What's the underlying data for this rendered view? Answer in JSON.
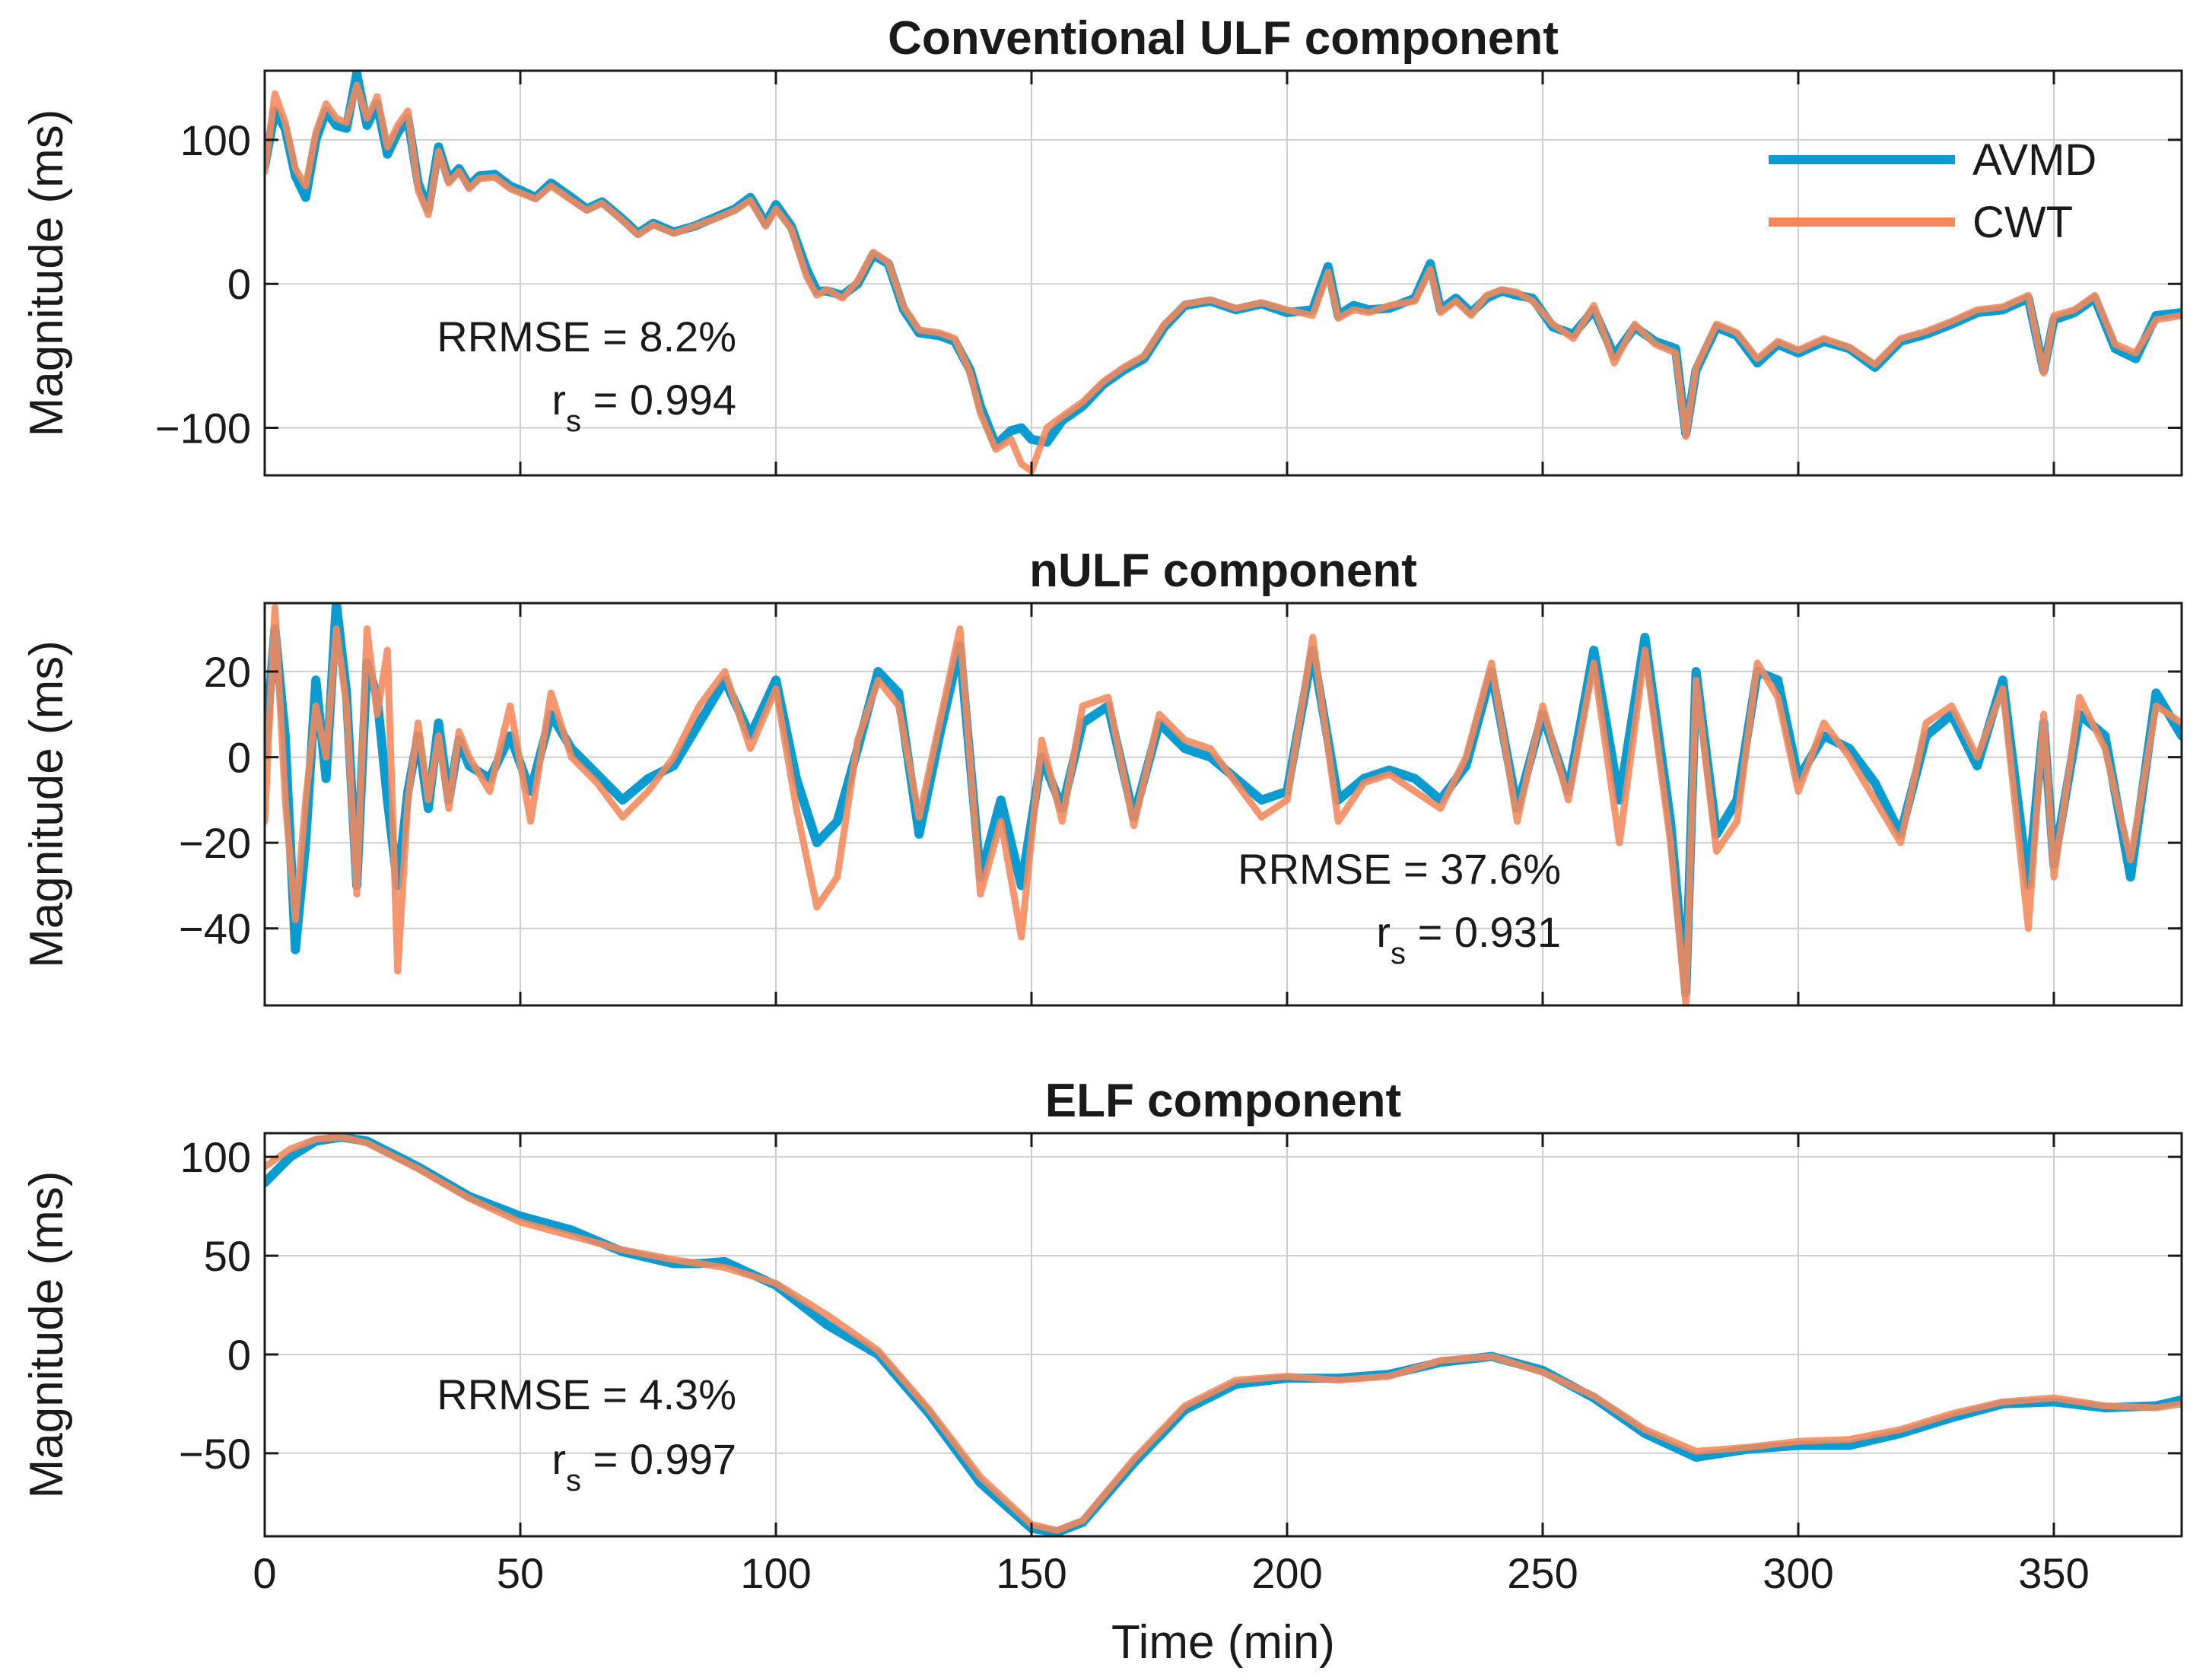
{
  "colors": {
    "avmd": "#0A9BD1",
    "cwt": "#F5875A",
    "cwt_overlap": "#D9714F"
  },
  "xlabel": "Time (min)",
  "legend": {
    "placement": "top-right",
    "entries": [
      "AVMD",
      "CWT"
    ]
  },
  "chart_data": [
    {
      "type": "line",
      "title": "Conventional ULF component",
      "xlabel": "",
      "ylabel": "Magnitude (ms)",
      "xlim": [
        0,
        375
      ],
      "ylim": [
        -133,
        148
      ],
      "xticks": [
        0,
        50,
        100,
        150,
        200,
        250,
        300,
        350
      ],
      "yticks": [
        -100,
        0,
        100
      ],
      "ytick_labels": [
        "−100",
        "0",
        "100"
      ],
      "stats": {
        "rrmse_label": "RRMSE",
        "rrmse_value": "8.2%",
        "rs_label": "r",
        "rs_sub": "s",
        "rs_value": "0.994",
        "eq": "="
      },
      "series": [
        {
          "name": "AVMD",
          "x": [
            0,
            2,
            4,
            6,
            8,
            10,
            12,
            14,
            16,
            18,
            20,
            22,
            24,
            26,
            28,
            30,
            32,
            34,
            36,
            38,
            40,
            42,
            45,
            48,
            50,
            53,
            56,
            60,
            63,
            66,
            70,
            73,
            76,
            80,
            84,
            88,
            92,
            95,
            98,
            100,
            103,
            106,
            108,
            110,
            113,
            116,
            119,
            122,
            125,
            128,
            132,
            135,
            138,
            140,
            143,
            146,
            148,
            150,
            153,
            156,
            160,
            164,
            168,
            172,
            176,
            180,
            185,
            190,
            195,
            200,
            205,
            208,
            210,
            213,
            216,
            220,
            225,
            228,
            230,
            233,
            236,
            239,
            242,
            245,
            248,
            252,
            256,
            260,
            264,
            268,
            272,
            276,
            278,
            280,
            284,
            288,
            292,
            296,
            300,
            305,
            310,
            315,
            320,
            325,
            330,
            335,
            340,
            345,
            348,
            350,
            354,
            358,
            362,
            366,
            370,
            375
          ],
          "y": [
            82,
            120,
            108,
            75,
            60,
            100,
            120,
            110,
            108,
            146,
            110,
            125,
            90,
            105,
            115,
            70,
            52,
            95,
            72,
            80,
            68,
            75,
            76,
            68,
            65,
            60,
            70,
            60,
            52,
            57,
            45,
            35,
            42,
            36,
            40,
            46,
            52,
            60,
            42,
            55,
            40,
            10,
            -5,
            -5,
            -8,
            0,
            20,
            14,
            -18,
            -34,
            -36,
            -40,
            -60,
            -85,
            -112,
            -102,
            -100,
            -108,
            -110,
            -95,
            -85,
            -70,
            -60,
            -52,
            -30,
            -15,
            -12,
            -18,
            -14,
            -20,
            -18,
            12,
            -22,
            -15,
            -18,
            -17,
            -10,
            14,
            -18,
            -10,
            -20,
            -10,
            -5,
            -8,
            -10,
            -30,
            -35,
            -18,
            -50,
            -30,
            -40,
            -45,
            -104,
            -60,
            -30,
            -36,
            -55,
            -42,
            -48,
            -40,
            -45,
            -58,
            -40,
            -35,
            -28,
            -20,
            -18,
            -10,
            -60,
            -25,
            -20,
            -10,
            -45,
            -52,
            -22,
            -20
          ]
        },
        {
          "name": "CWT",
          "x": [
            0,
            2,
            4,
            6,
            8,
            10,
            12,
            14,
            16,
            18,
            20,
            22,
            24,
            26,
            28,
            30,
            32,
            34,
            36,
            38,
            40,
            42,
            45,
            48,
            50,
            53,
            56,
            60,
            63,
            66,
            70,
            73,
            76,
            80,
            84,
            88,
            92,
            95,
            98,
            100,
            103,
            106,
            108,
            110,
            113,
            116,
            119,
            122,
            125,
            128,
            132,
            135,
            138,
            140,
            143,
            146,
            148,
            150,
            153,
            156,
            160,
            164,
            168,
            172,
            176,
            180,
            185,
            190,
            195,
            200,
            205,
            208,
            210,
            213,
            216,
            220,
            225,
            228,
            230,
            233,
            236,
            239,
            242,
            245,
            248,
            252,
            256,
            260,
            264,
            268,
            272,
            276,
            278,
            280,
            284,
            288,
            292,
            296,
            300,
            305,
            310,
            315,
            320,
            325,
            330,
            335,
            340,
            345,
            348,
            350,
            354,
            358,
            362,
            366,
            370,
            375
          ],
          "y": [
            78,
            132,
            112,
            80,
            68,
            105,
            125,
            115,
            112,
            138,
            115,
            130,
            95,
            110,
            120,
            65,
            48,
            92,
            70,
            78,
            66,
            73,
            74,
            66,
            63,
            59,
            68,
            58,
            51,
            56,
            44,
            34,
            41,
            35,
            40,
            45,
            51,
            58,
            40,
            52,
            38,
            5,
            -8,
            -4,
            -10,
            2,
            22,
            15,
            -16,
            -32,
            -34,
            -38,
            -62,
            -90,
            -115,
            -108,
            -125,
            -130,
            -100,
            -92,
            -82,
            -68,
            -58,
            -50,
            -28,
            -14,
            -11,
            -17,
            -13,
            -18,
            -22,
            8,
            -24,
            -18,
            -20,
            -15,
            -12,
            10,
            -20,
            -12,
            -22,
            -8,
            -4,
            -6,
            -12,
            -28,
            -38,
            -15,
            -55,
            -28,
            -42,
            -48,
            -106,
            -58,
            -28,
            -34,
            -52,
            -40,
            -46,
            -38,
            -44,
            -56,
            -38,
            -33,
            -26,
            -18,
            -16,
            -8,
            -62,
            -22,
            -18,
            -8,
            -42,
            -48,
            -25,
            -22
          ]
        }
      ]
    },
    {
      "type": "line",
      "title": "nULF component",
      "xlabel": "",
      "ylabel": "Magnitude (ms)",
      "xlim": [
        0,
        375
      ],
      "ylim": [
        -58,
        36
      ],
      "xticks": [
        0,
        50,
        100,
        150,
        200,
        250,
        300,
        350
      ],
      "yticks": [
        -40,
        -20,
        0,
        20
      ],
      "ytick_labels": [
        "−40",
        "−20",
        "0",
        "20"
      ],
      "stats": {
        "rrmse_label": "RRMSE",
        "rrmse_value": "37.6%",
        "rs_label": "r",
        "rs_sub": "s",
        "rs_value": "0.931",
        "eq": "="
      },
      "series": [
        {
          "name": "AVMD",
          "x": [
            0,
            2,
            4,
            6,
            8,
            10,
            12,
            14,
            16,
            18,
            20,
            22,
            24,
            26,
            28,
            30,
            32,
            34,
            36,
            38,
            40,
            44,
            48,
            52,
            56,
            60,
            65,
            70,
            75,
            80,
            85,
            90,
            95,
            100,
            104,
            108,
            112,
            116,
            120,
            124,
            128,
            132,
            136,
            140,
            144,
            148,
            152,
            156,
            160,
            165,
            170,
            175,
            180,
            185,
            190,
            195,
            200,
            205,
            210,
            215,
            220,
            225,
            230,
            235,
            240,
            245,
            250,
            255,
            260,
            265,
            270,
            275,
            278,
            280,
            284,
            288,
            292,
            296,
            300,
            305,
            310,
            315,
            320,
            325,
            330,
            335,
            340,
            345,
            348,
            350,
            355,
            360,
            365,
            370,
            375
          ],
          "y": [
            0,
            30,
            5,
            -45,
            -20,
            18,
            -5,
            36,
            15,
            -30,
            22,
            14,
            -10,
            -30,
            -8,
            5,
            -12,
            8,
            -10,
            4,
            -2,
            -5,
            5,
            -8,
            10,
            2,
            -4,
            -10,
            -5,
            -2,
            8,
            18,
            5,
            18,
            -5,
            -20,
            -15,
            2,
            20,
            15,
            -18,
            5,
            26,
            -28,
            -10,
            -30,
            0,
            -12,
            8,
            12,
            -14,
            8,
            2,
            0,
            -5,
            -10,
            -8,
            25,
            -10,
            -5,
            -3,
            -5,
            -10,
            -2,
            20,
            -12,
            10,
            -8,
            25,
            -10,
            28,
            -15,
            -55,
            20,
            -18,
            -10,
            20,
            18,
            -5,
            5,
            2,
            -6,
            -18,
            5,
            10,
            -2,
            18,
            -30,
            8,
            -25,
            10,
            5,
            -28,
            15,
            5
          ]
        },
        {
          "name": "CWT",
          "x": [
            0,
            2,
            4,
            6,
            8,
            10,
            12,
            14,
            16,
            18,
            20,
            22,
            24,
            26,
            28,
            30,
            32,
            34,
            36,
            38,
            40,
            44,
            48,
            52,
            56,
            60,
            65,
            70,
            75,
            80,
            85,
            90,
            95,
            100,
            104,
            108,
            112,
            116,
            120,
            124,
            128,
            132,
            136,
            140,
            144,
            148,
            152,
            156,
            160,
            165,
            170,
            175,
            180,
            185,
            190,
            195,
            200,
            205,
            210,
            215,
            220,
            225,
            230,
            235,
            240,
            245,
            250,
            255,
            260,
            265,
            270,
            275,
            278,
            280,
            284,
            288,
            292,
            296,
            300,
            305,
            310,
            315,
            320,
            325,
            330,
            335,
            340,
            345,
            348,
            350,
            355,
            360,
            365,
            370,
            375
          ],
          "y": [
            -15,
            35,
            -10,
            -38,
            -10,
            12,
            0,
            30,
            12,
            -32,
            30,
            10,
            25,
            -50,
            -10,
            8,
            -10,
            5,
            -12,
            6,
            0,
            -8,
            12,
            -15,
            15,
            0,
            -6,
            -14,
            -8,
            0,
            12,
            20,
            2,
            16,
            -12,
            -35,
            -28,
            4,
            18,
            12,
            -14,
            8,
            30,
            -32,
            -15,
            -42,
            4,
            -15,
            12,
            14,
            -16,
            10,
            4,
            2,
            -6,
            -14,
            -10,
            28,
            -15,
            -6,
            -4,
            -8,
            -12,
            0,
            22,
            -15,
            12,
            -10,
            22,
            -20,
            25,
            -20,
            -58,
            18,
            -22,
            -15,
            22,
            14,
            -8,
            8,
            0,
            -10,
            -20,
            8,
            12,
            0,
            16,
            -40,
            10,
            -28,
            14,
            2,
            -24,
            12,
            8
          ]
        }
      ]
    },
    {
      "type": "line",
      "title": "ELF component",
      "xlabel": "Time (min)",
      "ylabel": "Magnitude (ms)",
      "xlim": [
        0,
        375
      ],
      "ylim": [
        -92,
        112
      ],
      "xticks": [
        0,
        50,
        100,
        150,
        200,
        250,
        300,
        350
      ],
      "xtick_labels": [
        "0",
        "50",
        "100",
        "150",
        "200",
        "250",
        "300",
        "350"
      ],
      "yticks": [
        -50,
        0,
        50,
        100
      ],
      "ytick_labels": [
        "−50",
        "0",
        "50",
        "100"
      ],
      "stats": {
        "rrmse_label": "RRMSE",
        "rrmse_value": "4.3%",
        "rs_label": "r",
        "rs_sub": "s",
        "rs_value": "0.997",
        "eq": "="
      },
      "series": [
        {
          "name": "AVMD",
          "x": [
            0,
            5,
            10,
            15,
            20,
            30,
            40,
            50,
            60,
            70,
            80,
            85,
            90,
            100,
            110,
            120,
            130,
            140,
            150,
            155,
            160,
            170,
            180,
            190,
            200,
            210,
            220,
            230,
            240,
            250,
            260,
            270,
            280,
            290,
            300,
            310,
            320,
            330,
            340,
            350,
            360,
            370,
            375
          ],
          "y": [
            87,
            100,
            108,
            110,
            108,
            95,
            80,
            70,
            63,
            52,
            46,
            46,
            47,
            35,
            15,
            0,
            -30,
            -65,
            -88,
            -90,
            -85,
            -55,
            -28,
            -15,
            -12,
            -12,
            -10,
            -4,
            -1,
            -8,
            -22,
            -40,
            -52,
            -48,
            -46,
            -46,
            -40,
            -32,
            -25,
            -24,
            -27,
            -26,
            -23
          ]
        },
        {
          "name": "CWT",
          "x": [
            0,
            5,
            10,
            15,
            20,
            30,
            40,
            50,
            60,
            70,
            80,
            85,
            90,
            100,
            110,
            120,
            130,
            140,
            150,
            155,
            160,
            170,
            180,
            190,
            200,
            210,
            220,
            230,
            240,
            250,
            260,
            270,
            280,
            290,
            300,
            310,
            320,
            330,
            340,
            350,
            360,
            370,
            375
          ],
          "y": [
            95,
            104,
            109,
            110,
            107,
            94,
            79,
            67,
            60,
            53,
            48,
            46,
            44,
            36,
            20,
            2,
            -28,
            -62,
            -86,
            -89,
            -84,
            -53,
            -26,
            -13,
            -11,
            -13,
            -11,
            -3,
            -1,
            -9,
            -21,
            -38,
            -49,
            -47,
            -44,
            -43,
            -38,
            -30,
            -24,
            -22,
            -26,
            -27,
            -25
          ]
        }
      ]
    }
  ]
}
